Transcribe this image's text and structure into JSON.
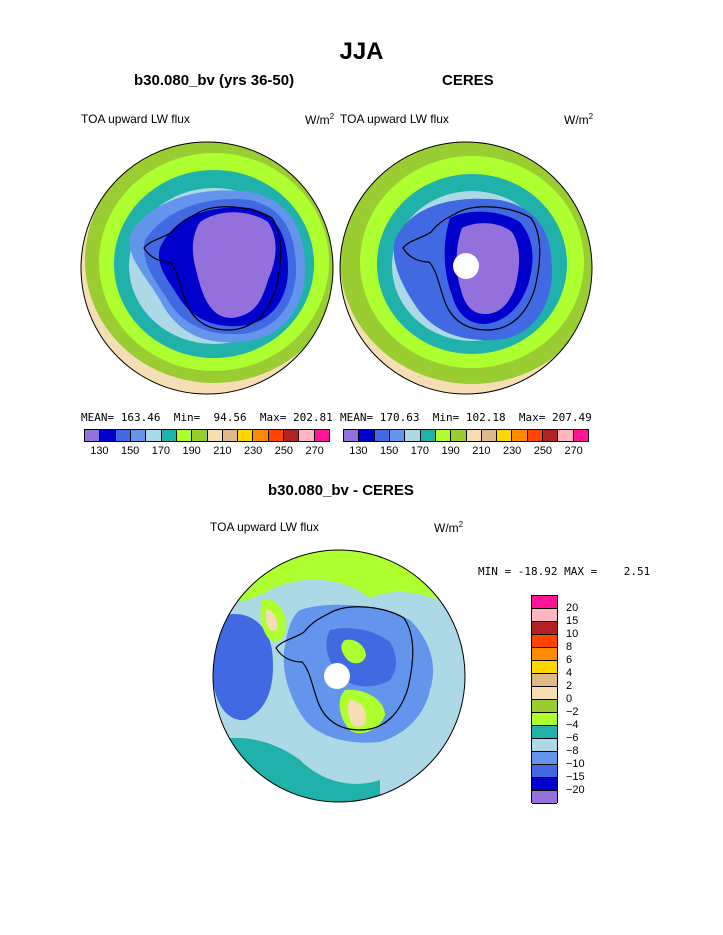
{
  "title": "JJA",
  "panels": [
    {
      "title": "b30.080_bv (yrs 36-50)",
      "variable": "TOA upward LW flux",
      "units": "W/m",
      "units_sup": "2",
      "stats": {
        "mean_label": "MEAN=",
        "mean": "163.46",
        "min_label": "Min=",
        "min": "94.56",
        "max_label": "Max=",
        "max": "202.81"
      }
    },
    {
      "title": "CERES",
      "variable": "TOA upward LW flux",
      "units": "W/m",
      "units_sup": "2",
      "stats": {
        "mean_label": "MEAN=",
        "mean": "170.63",
        "min_label": "Min=",
        "min": "102.18",
        "max_label": "Max=",
        "max": "207.49"
      }
    },
    {
      "title": "b30.080_bv - CERES",
      "variable": "TOA upward LW flux",
      "units": "W/m",
      "units_sup": "2",
      "stats": {
        "min_label": "MIN =",
        "min": "-18.92",
        "max_label": "MAX =",
        "max": "2.51"
      }
    }
  ],
  "horizontal_colorbar": {
    "colors": [
      "#9370db",
      "#0000cd",
      "#4169e1",
      "#6495ed",
      "#add8e6",
      "#20b2aa",
      "#adff2f",
      "#9acd32",
      "#f5deb3",
      "#deb887",
      "#ffd700",
      "#ff8c00",
      "#ff4500",
      "#b22222",
      "#ffb6c1",
      "#ff1493"
    ],
    "tick_labels": [
      "130",
      "150",
      "170",
      "190",
      "210",
      "230",
      "250",
      "270"
    ]
  },
  "vertical_colorbar": {
    "colors_top_to_bottom": [
      "#ff1493",
      "#ffb6c1",
      "#b22222",
      "#ff4500",
      "#ff8c00",
      "#ffd700",
      "#deb887",
      "#f5deb3",
      "#9acd32",
      "#adff2f",
      "#20b2aa",
      "#add8e6",
      "#6495ed",
      "#4169e1",
      "#0000cd",
      "#9370db"
    ],
    "tick_labels": [
      "20",
      "15",
      "10",
      "8",
      "6",
      "4",
      "2",
      "0",
      "−2",
      "−4",
      "−6",
      "−8",
      "−10",
      "−15",
      "−20"
    ]
  },
  "chart_data": [
    {
      "type": "heatmap",
      "projection": "south polar stereographic",
      "title": "b30.080_bv (yrs 36-50)",
      "variable": "TOA upward LW flux",
      "units": "W/m2",
      "mean": 163.46,
      "min": 94.56,
      "max": 202.81,
      "contour_levels": [
        130,
        140,
        150,
        160,
        170,
        180,
        190,
        200,
        210,
        220,
        230,
        240,
        250,
        260,
        270
      ],
      "zones_pole_to_edge": [
        {
          "range": "<130",
          "color": "#9370db"
        },
        {
          "range": "130-140",
          "color": "#0000cd"
        },
        {
          "range": "140-150",
          "color": "#4169e1"
        },
        {
          "range": "150-160",
          "color": "#6495ed"
        },
        {
          "range": "160-170",
          "color": "#add8e6"
        },
        {
          "range": "170-180",
          "color": "#20b2aa"
        },
        {
          "range": "180-190",
          "color": "#adff2f"
        },
        {
          "range": "190-200",
          "color": "#9acd32"
        },
        {
          "range": "200-210",
          "color": "#f5deb3"
        }
      ]
    },
    {
      "type": "heatmap",
      "projection": "south polar stereographic",
      "title": "CERES",
      "variable": "TOA upward LW flux",
      "units": "W/m2",
      "mean": 170.63,
      "min": 102.18,
      "max": 207.49,
      "contour_levels": [
        130,
        140,
        150,
        160,
        170,
        180,
        190,
        200,
        210,
        220,
        230,
        240,
        250,
        260,
        270
      ],
      "zones_pole_to_edge": [
        {
          "range": "<130",
          "color": "#9370db"
        },
        {
          "range": "130-140",
          "color": "#0000cd"
        },
        {
          "range": "140-150",
          "color": "#4169e1"
        },
        {
          "range": "150-160",
          "color": "#6495ed"
        },
        {
          "range": "160-170",
          "color": "#add8e6"
        },
        {
          "range": "170-180",
          "color": "#20b2aa"
        },
        {
          "range": "180-190",
          "color": "#adff2f"
        },
        {
          "range": "190-200",
          "color": "#9acd32"
        },
        {
          "range": "200-210",
          "color": "#f5deb3"
        }
      ]
    },
    {
      "type": "heatmap",
      "projection": "south polar stereographic",
      "title": "b30.080_bv - CERES",
      "variable": "TOA upward LW flux",
      "units": "W/m2",
      "min": -18.92,
      "max": 2.51,
      "contour_levels": [
        -20,
        -15,
        -10,
        -8,
        -6,
        -4,
        -2,
        0,
        2,
        4,
        6,
        8,
        10,
        15,
        20
      ],
      "dominant_ranges": [
        "-10 to -8",
        "-8 to -6",
        "-6 to -4",
        "-4 to -2",
        "-15 to -10",
        "0 to 2"
      ]
    }
  ]
}
